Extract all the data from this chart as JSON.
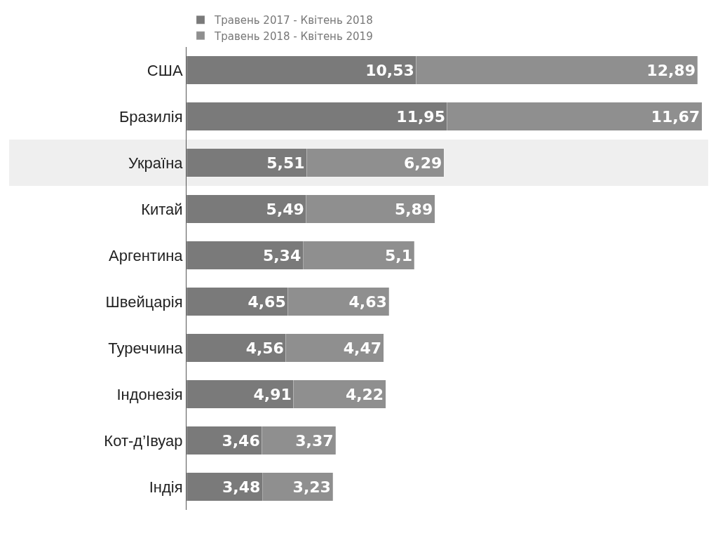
{
  "chart_data": {
    "type": "bar",
    "orientation": "horizontal",
    "stacked": true,
    "legend": "top",
    "categories": [
      "США",
      "Бразилія",
      "Україна",
      "Китай",
      "Аргентина",
      "Швейцарія",
      "Туреччина",
      "Індонезія",
      "Кот-д’Івуар",
      "Індія"
    ],
    "series": [
      {
        "name": "Травень 2017 - Квітень 2018",
        "color": "#7a7a7a",
        "values": [
          10.53,
          11.95,
          5.51,
          5.49,
          5.34,
          4.65,
          4.56,
          4.91,
          3.46,
          3.48
        ],
        "value_labels": [
          "10,53",
          "11,95",
          "5,51",
          "5,49",
          "5,34",
          "4,65",
          "4,56",
          "4,91",
          "3,46",
          "3,48"
        ]
      },
      {
        "name": "Травень 2018 - Квітень 2019",
        "color": "#8f8f8f",
        "values": [
          12.89,
          11.67,
          6.29,
          5.89,
          5.1,
          4.63,
          4.47,
          4.22,
          3.37,
          3.23
        ],
        "value_labels": [
          "12,89",
          "11,67",
          "6,29",
          "5,89",
          "5,1",
          "4,63",
          "4,47",
          "4,22",
          "3,37",
          "3,23"
        ]
      }
    ],
    "bands": [
      {
        "axis": "y",
        "from": "Україна",
        "to": "Україна",
        "color": "#efefef"
      }
    ]
  }
}
